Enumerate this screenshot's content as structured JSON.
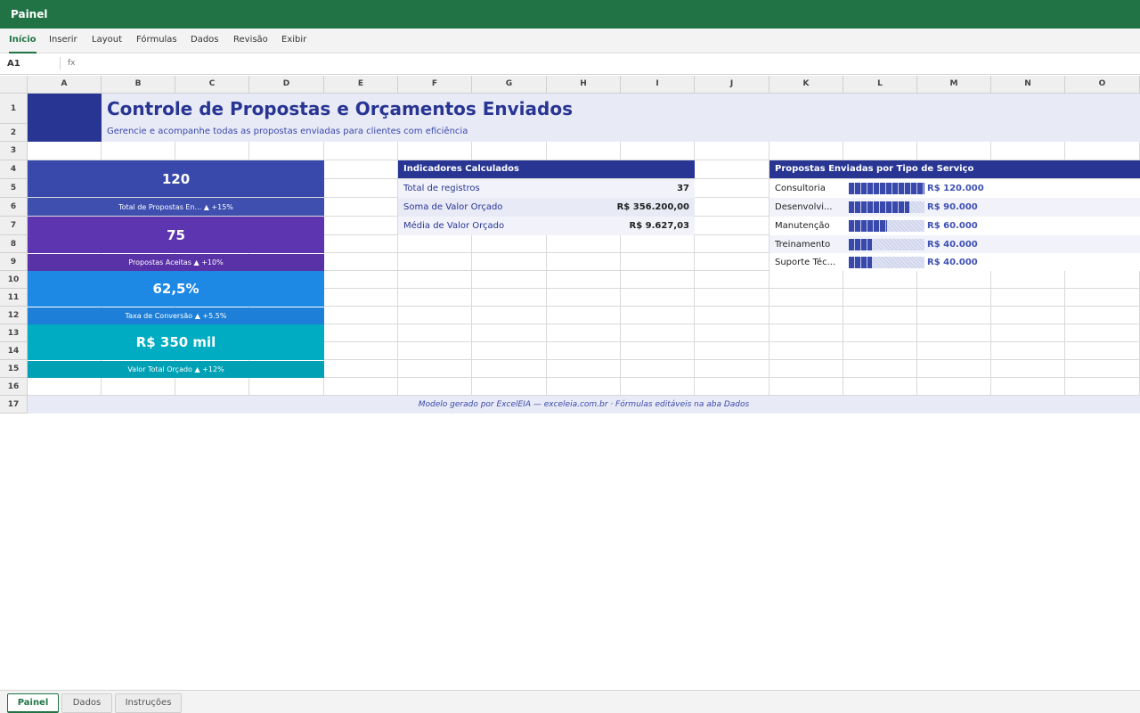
{
  "window": {
    "title": "Painel"
  },
  "ribbon": {
    "tabs": [
      "Início",
      "Inserir",
      "Layout",
      "Fórmulas",
      "Dados",
      "Revisão",
      "Exibir"
    ],
    "active_tab": "Início"
  },
  "formula_bar": {
    "cell_ref": "A1",
    "fx_label": "fx",
    "value": ""
  },
  "columns": [
    "A",
    "B",
    "C",
    "D",
    "E",
    "F",
    "G",
    "H",
    "I",
    "J",
    "K",
    "L",
    "M",
    "N",
    "O"
  ],
  "rows": [
    "1",
    "2",
    "3",
    "4",
    "5",
    "6",
    "7",
    "8",
    "9",
    "10",
    "11",
    "12",
    "13",
    "14",
    "15",
    "16",
    "17"
  ],
  "header": {
    "title": "Controle de Propostas e Orçamentos Enviados",
    "subtitle": "Gerencie e acompanhe todas as propostas enviadas para clientes com eficiência"
  },
  "kpis": [
    {
      "value": "120",
      "label": "Total de Propostas En... ▲ +15%",
      "color": "#3949ab",
      "label_color": "#3f4fb0"
    },
    {
      "value": "75",
      "label": "Propostas Aceitas ▲ +10%",
      "color": "#5e35b1",
      "label_color": "#5a32a8"
    },
    {
      "value": "62,5%",
      "label": "Taxa de Conversão ▲ +5.5%",
      "color": "#1e88e5",
      "label_color": "#1e7fd8"
    },
    {
      "value": "R$ 350 mil",
      "label": "Valor Total Orçado ▲ +12%",
      "color": "#00acc1",
      "label_color": "#00a0b5"
    }
  ],
  "indicators": {
    "title": "Indicadores Calculados",
    "rows": [
      {
        "label": "Total de registros",
        "value": "37"
      },
      {
        "label": "Soma de Valor Orçado",
        "value": "R$ 356.200,00"
      },
      {
        "label": "Média de Valor Orçado",
        "value": "R$ 9.627,03"
      }
    ]
  },
  "services": {
    "title": "Propostas Enviadas por Tipo de Serviço",
    "rows": [
      {
        "label": "Consultoria",
        "value": "R$ 120.000",
        "fraction": 1.0
      },
      {
        "label": "Desenvolvi...",
        "value": "R$ 90.000",
        "fraction": 0.8
      },
      {
        "label": "Manutenção",
        "value": "R$ 60.000",
        "fraction": 0.5
      },
      {
        "label": "Treinamento",
        "value": "R$ 40.000",
        "fraction": 0.3
      },
      {
        "label": "Suporte Téc...",
        "value": "R$ 40.000",
        "fraction": 0.3
      }
    ]
  },
  "footer": {
    "text": "Modelo gerado por ExcelEIA — exceleia.com.br · Fórmulas editáveis na aba Dados"
  },
  "sheet_tabs": [
    "Painel",
    "Dados",
    "Instruções"
  ],
  "active_sheet": "Painel",
  "colors": {
    "brand": "#217346",
    "navy": "#283593",
    "title_text": "#283593",
    "header_band": "#e8eaf6",
    "footer_band": "#e8eaf6"
  }
}
